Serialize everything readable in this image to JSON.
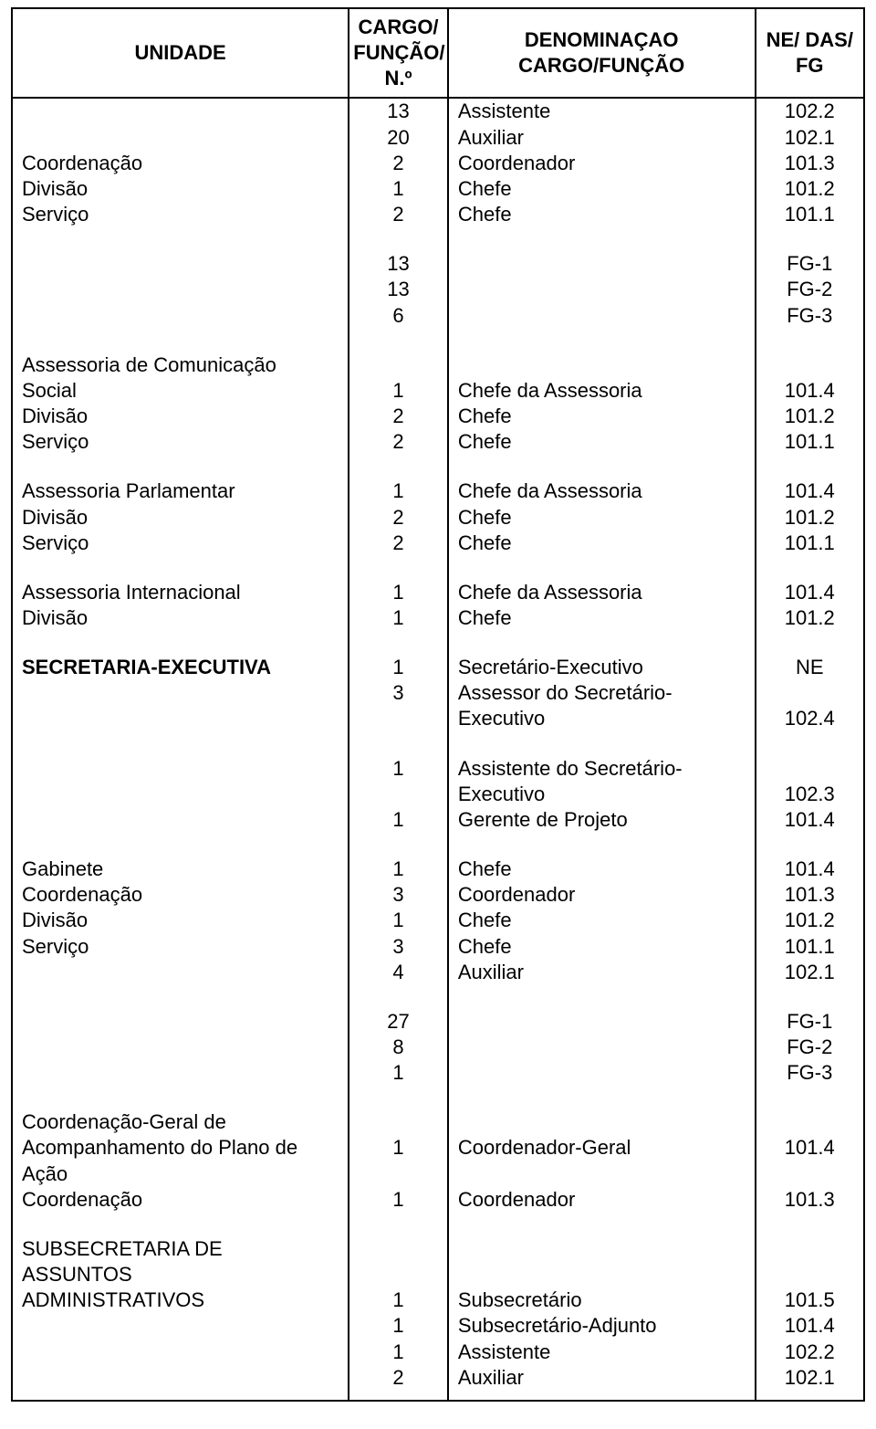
{
  "header": {
    "unidade": "UNIDADE",
    "cargo_funcao_n": "CARGO/\nFUNÇÃO/\nN.º",
    "denominacao": "DENOMINAÇAO\nCARGO/FUNÇÃO",
    "ne_das_fg": "NE/ DAS/\nFG"
  },
  "rows": [
    {
      "u": "",
      "n": "13",
      "d": "Assistente",
      "f": "102.2"
    },
    {
      "u": "",
      "n": "20",
      "d": "Auxiliar",
      "f": "102.1"
    },
    {
      "u": "Coordenação",
      "n": "2",
      "d": "Coordenador",
      "f": "101.3"
    },
    {
      "u": "Divisão",
      "n": "1",
      "d": "Chefe",
      "f": "101.2"
    },
    {
      "u": "Serviço",
      "n": "2",
      "d": "Chefe",
      "f": "101.1"
    },
    {
      "spacer": true
    },
    {
      "u": "",
      "n": "13",
      "d": "",
      "f": "FG-1"
    },
    {
      "u": "",
      "n": "13",
      "d": "",
      "f": "FG-2"
    },
    {
      "u": "",
      "n": "6",
      "d": "",
      "f": "FG-3"
    },
    {
      "spacer": true
    },
    {
      "u": "Assessoria de Comunicação",
      "n": "",
      "d": "",
      "f": ""
    },
    {
      "u": "Social",
      "n": "1",
      "d": "Chefe da Assessoria",
      "f": "101.4"
    },
    {
      "u": "Divisão",
      "n": "2",
      "d": "Chefe",
      "f": "101.2"
    },
    {
      "u": "Serviço",
      "n": "2",
      "d": "Chefe",
      "f": "101.1"
    },
    {
      "spacer": true
    },
    {
      "u": "Assessoria Parlamentar",
      "n": "1",
      "d": "Chefe da Assessoria",
      "f": "101.4"
    },
    {
      "u": "Divisão",
      "n": "2",
      "d": "Chefe",
      "f": "101.2"
    },
    {
      "u": "Serviço",
      "n": "2",
      "d": "Chefe",
      "f": "101.1"
    },
    {
      "spacer": true
    },
    {
      "u": "Assessoria Internacional",
      "n": "1",
      "d": "Chefe da Assessoria",
      "f": "101.4"
    },
    {
      "u": "Divisão",
      "n": "1",
      "d": "Chefe",
      "f": "101.2"
    },
    {
      "spacer": true
    },
    {
      "u": "SECRETARIA-EXECUTIVA",
      "u_bold": true,
      "n": "1",
      "d": "Secretário-Executivo",
      "f": "NE"
    },
    {
      "u": "",
      "n": "3",
      "d": "Assessor do Secretário-",
      "f": ""
    },
    {
      "u": "",
      "n": "",
      "d": "Executivo",
      "f": "102.4"
    },
    {
      "spacer": true
    },
    {
      "u": "",
      "n": "1",
      "d": "Assistente do Secretário-",
      "f": ""
    },
    {
      "u": "",
      "n": "",
      "d": "Executivo",
      "f": "102.3"
    },
    {
      "u": "",
      "n": "1",
      "d": "Gerente de Projeto",
      "f": "101.4"
    },
    {
      "spacer": true
    },
    {
      "u": "Gabinete",
      "n": "1",
      "d": "Chefe",
      "f": "101.4"
    },
    {
      "u": "Coordenação",
      "n": "3",
      "d": "Coordenador",
      "f": "101.3"
    },
    {
      "u": "Divisão",
      "n": "1",
      "d": "Chefe",
      "f": "101.2"
    },
    {
      "u": "Serviço",
      "n": "3",
      "d": "Chefe",
      "f": "101.1"
    },
    {
      "u": "",
      "n": "4",
      "d": "Auxiliar",
      "f": "102.1"
    },
    {
      "spacer": true
    },
    {
      "u": "",
      "n": "27",
      "d": "",
      "f": "FG-1"
    },
    {
      "u": "",
      "n": "8",
      "d": "",
      "f": "FG-2"
    },
    {
      "u": "",
      "n": "1",
      "d": "",
      "f": "FG-3"
    },
    {
      "spacer": true
    },
    {
      "u": "Coordenação-Geral de",
      "n": "",
      "d": "",
      "f": ""
    },
    {
      "u": "Acompanhamento do Plano de",
      "n": "1",
      "d": "Coordenador-Geral",
      "f": "101.4"
    },
    {
      "u": "Ação",
      "n": "",
      "d": "",
      "f": ""
    },
    {
      "u": "Coordenação",
      "n": "1",
      "d": "Coordenador",
      "f": "101.3"
    },
    {
      "spacer": true
    },
    {
      "u": "SUBSECRETARIA DE",
      "n": "",
      "d": "",
      "f": ""
    },
    {
      "u": "ASSUNTOS",
      "n": "",
      "d": "",
      "f": ""
    },
    {
      "u": "ADMINISTRATIVOS",
      "n": "1",
      "d": "Subsecretário",
      "f": "101.5"
    },
    {
      "u": "",
      "n": "1",
      "d": "Subsecretário-Adjunto",
      "f": "101.4"
    },
    {
      "u": "",
      "n": "1",
      "d": "Assistente",
      "f": "102.2"
    },
    {
      "u": "",
      "n": "2",
      "d": "Auxiliar",
      "f": "102.1"
    }
  ]
}
